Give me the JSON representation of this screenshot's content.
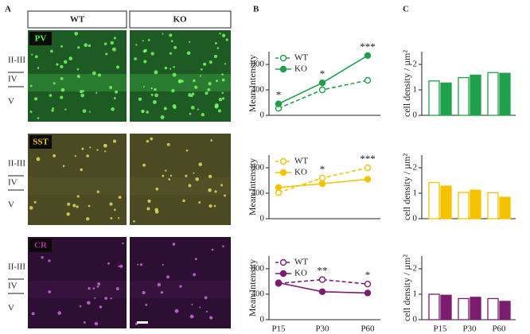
{
  "panel_labels": [
    "A",
    "B",
    "C"
  ],
  "panel_a": {
    "columns": [
      "WT",
      "KO"
    ],
    "rows": [
      {
        "marker": "PV",
        "layers": [
          "II-III",
          "IV",
          "V"
        ]
      },
      {
        "marker": "SST",
        "layers": [
          "II-III",
          "IV",
          "V"
        ]
      },
      {
        "marker": "CR",
        "layers": [
          "II-III",
          "IV",
          "V"
        ]
      }
    ]
  },
  "chart_data": [
    {
      "type": "line",
      "ylabel": "Mean Intensity",
      "categories": [
        null,
        null,
        null
      ],
      "ylim": [
        0,
        1000
      ],
      "yticks": [
        0,
        400,
        800
      ],
      "legend": "upper left",
      "annotations": [
        "*",
        "*",
        "***"
      ],
      "series": [
        {
          "name": "WT",
          "color": "#21a04b",
          "dashed": true,
          "hollow": true,
          "values": [
            110,
            400,
            550
          ]
        },
        {
          "name": "KO",
          "color": "#21a04b",
          "dashed": false,
          "hollow": false,
          "values": [
            180,
            510,
            940
          ]
        }
      ]
    },
    {
      "type": "line",
      "ylabel": "Mean Intensity",
      "categories": [
        null,
        null,
        null
      ],
      "ylim": [
        0,
        1000
      ],
      "yticks": [
        0,
        400,
        800
      ],
      "legend": "upper left",
      "annotations": [
        null,
        "*",
        "***"
      ],
      "series": [
        {
          "name": "WT",
          "color": "#f5c200",
          "dashed": true,
          "hollow": true,
          "values": [
            410,
            640,
            800
          ]
        },
        {
          "name": "KO",
          "color": "#f5c200",
          "dashed": false,
          "hollow": false,
          "values": [
            490,
            550,
            620
          ]
        }
      ]
    },
    {
      "type": "line",
      "ylabel": "Mean Intensity",
      "categories": [
        "P15",
        "P30",
        "P60"
      ],
      "ylim": [
        0,
        1000
      ],
      "yticks": [
        0,
        400,
        800
      ],
      "legend": "upper left",
      "annotations": [
        null,
        "**",
        "*"
      ],
      "series": [
        {
          "name": "WT",
          "color": "#7d1b6e",
          "dashed": true,
          "hollow": true,
          "values": [
            570,
            630,
            560
          ]
        },
        {
          "name": "KO",
          "color": "#7d1b6e",
          "dashed": false,
          "hollow": false,
          "values": [
            580,
            440,
            420
          ]
        }
      ]
    },
    {
      "type": "bar",
      "ylabel": "cell density / µm²",
      "categories": [
        null,
        null,
        null
      ],
      "ylim": [
        0,
        2.5
      ],
      "yticks": [
        0,
        1,
        2
      ],
      "series": [
        {
          "color": "#21a04b",
          "hollow": true,
          "values": [
            1.35,
            1.48,
            1.68
          ]
        },
        {
          "color": "#21a04b",
          "hollow": false,
          "values": [
            1.27,
            1.58,
            1.65
          ]
        }
      ]
    },
    {
      "type": "bar",
      "ylabel": "cell density / µm²",
      "categories": [
        null,
        null,
        null
      ],
      "ylim": [
        0,
        2.5
      ],
      "yticks": [
        0,
        1,
        2
      ],
      "series": [
        {
          "color": "#f5c200",
          "hollow": true,
          "values": [
            1.42,
            1.03,
            1.02
          ]
        },
        {
          "color": "#f5c200",
          "hollow": false,
          "values": [
            1.28,
            1.12,
            0.84
          ]
        }
      ]
    },
    {
      "type": "bar",
      "ylabel": "cell density / µm²",
      "categories": [
        "P15",
        "P30",
        "P60"
      ],
      "ylim": [
        0,
        2.5
      ],
      "yticks": [
        0,
        1,
        2
      ],
      "series": [
        {
          "color": "#7d1b6e",
          "hollow": true,
          "values": [
            1.0,
            0.83,
            0.83
          ]
        },
        {
          "color": "#7d1b6e",
          "hollow": false,
          "values": [
            0.96,
            0.88,
            0.72
          ]
        }
      ]
    }
  ]
}
